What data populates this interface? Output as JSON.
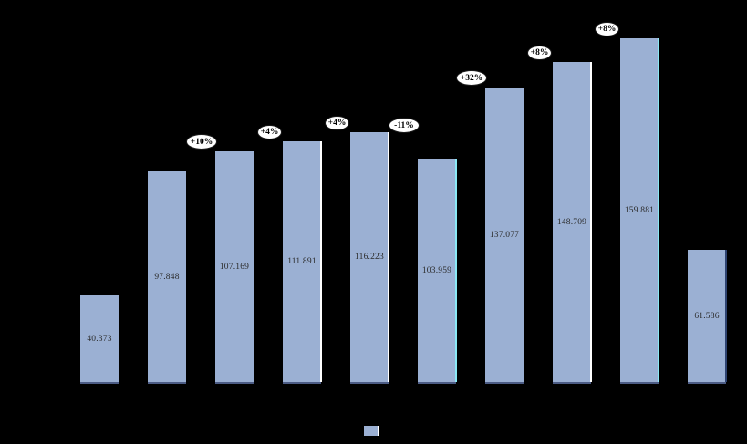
{
  "chart_data": {
    "type": "bar",
    "values": [
      40373,
      97848,
      107169,
      111891,
      116223,
      103959,
      137077,
      148709,
      159881,
      61586
    ],
    "data_labels": [
      "40.373",
      "97.848",
      "107.169",
      "111.891",
      "116.223",
      "103.959",
      "137.077",
      "148.709",
      "159.881",
      "61.586"
    ],
    "callouts": [
      {
        "label": "+10%",
        "bar_index": 2,
        "raised": false
      },
      {
        "label": "+4%",
        "bar_index": 3,
        "raised": false
      },
      {
        "label": "+4%",
        "bar_index": 4,
        "raised": false
      },
      {
        "label": "-11%",
        "bar_index": 5,
        "raised": true
      },
      {
        "label": "+32%",
        "bar_index": 6,
        "raised": false
      },
      {
        "label": "+8%",
        "bar_index": 7,
        "raised": false
      },
      {
        "label": "+8%",
        "bar_index": 8,
        "raised": false
      }
    ],
    "legend": {
      "swatch_color": "#9bb0d3"
    },
    "axes_visible": false,
    "gridlines_visible": false
  },
  "colors": {
    "background": "#000000",
    "bar_fill": "#9bb0d3",
    "bar_bottom_edge": "#4c5c85",
    "edge_white": "#ffffff",
    "edge_cyan": "#8ae8f5",
    "edge_dark": "#2e4370",
    "data_label_text": "#2b2b2b",
    "callout_fill": "#ffffff",
    "callout_text": "#000000",
    "callout_border": "#1a1a1a"
  }
}
